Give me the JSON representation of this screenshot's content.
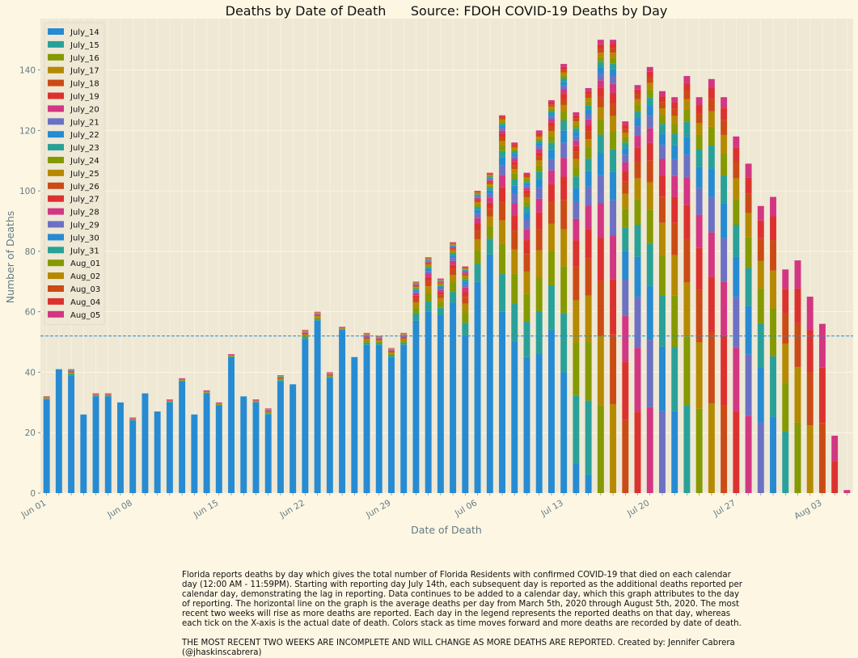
{
  "chart_data": {
    "type": "bar",
    "stacked": true,
    "title": "Deaths by Date of Death      Source: FDOH COVID-19 Deaths by Day",
    "xlabel": "Date of Death",
    "ylabel": "Number of Deaths",
    "ylim": [
      0,
      157
    ],
    "yticks": [
      0,
      20,
      40,
      60,
      80,
      100,
      120,
      140
    ],
    "xtick_labels": [
      {
        "label": "Jun 01",
        "index": 0
      },
      {
        "label": "Jun 08",
        "index": 7
      },
      {
        "label": "Jun 15",
        "index": 14
      },
      {
        "label": "Jun 22",
        "index": 21
      },
      {
        "label": "Jun 29",
        "index": 28
      },
      {
        "label": "Jul 06",
        "index": 35
      },
      {
        "label": "Jul 13",
        "index": 42
      },
      {
        "label": "Jul 20",
        "index": 49
      },
      {
        "label": "Jul 27",
        "index": 56
      },
      {
        "label": "Aug 03",
        "index": 63
      }
    ],
    "average_line": 52,
    "grid": true,
    "legend_position": "upper-left",
    "dates": [
      "Jun 01",
      "Jun 02",
      "Jun 03",
      "Jun 04",
      "Jun 05",
      "Jun 06",
      "Jun 07",
      "Jun 08",
      "Jun 09",
      "Jun 10",
      "Jun 11",
      "Jun 12",
      "Jun 13",
      "Jun 14",
      "Jun 15",
      "Jun 16",
      "Jun 17",
      "Jun 18",
      "Jun 19",
      "Jun 20",
      "Jun 21",
      "Jun 22",
      "Jun 23",
      "Jun 24",
      "Jun 25",
      "Jun 26",
      "Jun 27",
      "Jun 28",
      "Jun 29",
      "Jun 30",
      "Jul 01",
      "Jul 02",
      "Jul 03",
      "Jul 04",
      "Jul 05",
      "Jul 06",
      "Jul 07",
      "Jul 08",
      "Jul 09",
      "Jul 10",
      "Jul 11",
      "Jul 12",
      "Jul 13",
      "Jul 14",
      "Jul 15",
      "Jul 16",
      "Jul 17",
      "Jul 18",
      "Jul 19",
      "Jul 20",
      "Jul 21",
      "Jul 22",
      "Jul 23",
      "Jul 24",
      "Jul 25",
      "Jul 26",
      "Jul 27",
      "Jul 28",
      "Jul 29",
      "Jul 30",
      "Jul 31",
      "Aug 01",
      "Aug 02",
      "Aug 03",
      "Aug 04",
      "Aug 05"
    ],
    "series": [
      {
        "name": "July_14",
        "color": "#268bd2"
      },
      {
        "name": "July_15",
        "color": "#2aa198"
      },
      {
        "name": "July_16",
        "color": "#859900"
      },
      {
        "name": "July_17",
        "color": "#b58900"
      },
      {
        "name": "July_18",
        "color": "#cb4b16"
      },
      {
        "name": "July_19",
        "color": "#dc322f"
      },
      {
        "name": "July_20",
        "color": "#d33682"
      },
      {
        "name": "July_21",
        "color": "#6c71c4"
      },
      {
        "name": "July_22",
        "color": "#268bd2"
      },
      {
        "name": "July_23",
        "color": "#2aa198"
      },
      {
        "name": "July_24",
        "color": "#859900"
      },
      {
        "name": "July_25",
        "color": "#b58900"
      },
      {
        "name": "July_26",
        "color": "#cb4b16"
      },
      {
        "name": "July_27",
        "color": "#dc322f"
      },
      {
        "name": "July_28",
        "color": "#d33682"
      },
      {
        "name": "July_29",
        "color": "#6c71c4"
      },
      {
        "name": "July_30",
        "color": "#268bd2"
      },
      {
        "name": "July_31",
        "color": "#2aa198"
      },
      {
        "name": "Aug_01",
        "color": "#859900"
      },
      {
        "name": "Aug_02",
        "color": "#b58900"
      },
      {
        "name": "Aug_03",
        "color": "#cb4b16"
      },
      {
        "name": "Aug_04",
        "color": "#dc322f"
      },
      {
        "name": "Aug_05",
        "color": "#d33682"
      }
    ],
    "totals": [
      32,
      41,
      41,
      26,
      33,
      33,
      30,
      25,
      33,
      27,
      31,
      38,
      26,
      34,
      30,
      46,
      32,
      31,
      28,
      39,
      36,
      54,
      60,
      40,
      55,
      45,
      53,
      52,
      48,
      53,
      70,
      78,
      71,
      83,
      75,
      100,
      106,
      125,
      116,
      106,
      120,
      130,
      142,
      126,
      134,
      150,
      150,
      123,
      135,
      141,
      133,
      131,
      138,
      131,
      137,
      131,
      118,
      109,
      95,
      98,
      74,
      77,
      65,
      56,
      19,
      1
    ],
    "first_day_values": [
      31,
      41,
      39,
      26,
      32,
      32,
      30,
      24,
      33,
      27,
      30,
      37,
      26,
      33,
      29,
      45,
      32,
      30,
      26,
      37,
      36,
      51,
      57,
      38,
      54,
      45,
      49,
      49,
      45,
      49,
      57,
      60,
      59,
      63,
      52,
      70,
      79,
      60,
      50,
      45,
      46,
      54,
      40,
      10,
      6,
      0,
      0,
      0,
      0,
      0,
      0,
      0,
      0,
      0,
      0,
      0,
      0,
      0,
      0,
      0,
      0,
      0,
      0,
      0,
      0,
      0
    ]
  },
  "caption": {
    "paragraph": "Florida reports deaths by day which gives the total number of Florida Residents with confirmed COVID-19 that died on each calendar day (12:00 AM - 11:59PM). Starting with reporting day July 14th, each subsequent day is reported as the additional deaths reported per calendar day, demonstrating the lag in reporting. Data continues to be added to a calendar day, which this graph attributes to the day of reporting. The horizontal line on the graph is the average deaths per day from March 5th, 2020 through August 5th, 2020. The most recent two weeks will rise as more deaths are reported. Each day in the legend represents the reported deaths on that day, whereas each tick on the X-axis is the actual date of death. Colors stack as time moves forward and more deaths are recorded by date of death.",
    "note": "THE MOST RECENT TWO WEEKS ARE INCOMPLETE AND WILL CHANGE AS MORE DEATHS ARE REPORTED. Created by: Jennifer Cabrera (@jhaskinscabrera)"
  }
}
